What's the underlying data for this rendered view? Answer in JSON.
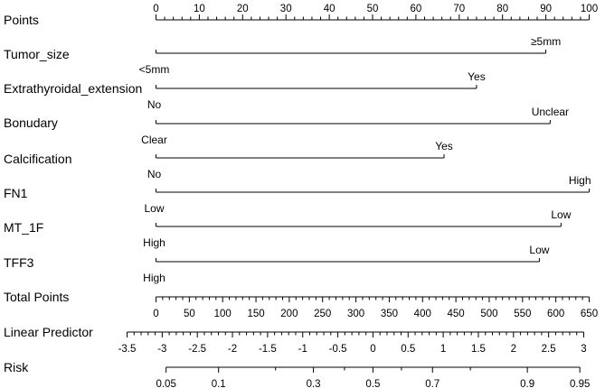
{
  "chart_data": {
    "type": "nomogram",
    "points_axis": {
      "label": "Points",
      "range": [
        0,
        100
      ],
      "labeled_ticks": [
        0,
        10,
        20,
        30,
        40,
        50,
        60,
        70,
        80,
        90,
        100
      ],
      "minor_step": 2
    },
    "variables": [
      {
        "name": "Tumor_size",
        "levels": [
          {
            "label": "<5mm",
            "points": 0,
            "label_side": "below"
          },
          {
            "label": "≥5mm",
            "points": 90,
            "label_side": "above"
          }
        ]
      },
      {
        "name": "Extrathyroidal_extension",
        "levels": [
          {
            "label": "No",
            "points": 0,
            "label_side": "below"
          },
          {
            "label": "Yes",
            "points": 74,
            "label_side": "above"
          }
        ]
      },
      {
        "name": "Bonudary",
        "levels": [
          {
            "label": "Clear",
            "points": 0,
            "label_side": "below"
          },
          {
            "label": "Unclear",
            "points": 91,
            "label_side": "above"
          }
        ]
      },
      {
        "name": "Calcification",
        "levels": [
          {
            "label": "No",
            "points": 0,
            "label_side": "below"
          },
          {
            "label": "Yes",
            "points": 66.5,
            "label_side": "above"
          }
        ]
      },
      {
        "name": "FN1",
        "levels": [
          {
            "label": "Low",
            "points": 0,
            "label_side": "below"
          },
          {
            "label": "High",
            "points": 100,
            "label_side": "above"
          }
        ]
      },
      {
        "name": "MT_1F",
        "levels": [
          {
            "label": "High",
            "points": 0,
            "label_side": "below"
          },
          {
            "label": "Low",
            "points": 93.5,
            "label_side": "above"
          }
        ]
      },
      {
        "name": "TFF3",
        "levels": [
          {
            "label": "High",
            "points": 0,
            "label_side": "below"
          },
          {
            "label": "Low",
            "points": 88.5,
            "label_side": "above"
          }
        ]
      }
    ],
    "total_points_axis": {
      "label": "Total Points",
      "range": [
        0,
        650
      ],
      "labeled_ticks": [
        0,
        50,
        100,
        150,
        200,
        250,
        300,
        350,
        400,
        450,
        500,
        550,
        600,
        650
      ],
      "minor_step": 10
    },
    "linear_predictor_axis": {
      "label": "Linear Predictor",
      "range": [
        -3.5,
        3
      ],
      "labeled_ticks": [
        -3.5,
        -3,
        -2.5,
        -2,
        -1.5,
        -1,
        -0.5,
        0,
        0.5,
        1,
        1.5,
        2,
        2.5,
        3
      ],
      "tick_labels": [
        "-3.5",
        "-3",
        "-2.5",
        "-2",
        "-1.5",
        "-1",
        "-0.5",
        "0",
        "0.5",
        "1",
        "1.5",
        "2",
        "2.5",
        "3"
      ],
      "minor_step": 0.1
    },
    "risk_axis": {
      "label": "Risk",
      "labeled_ticks": [
        0.05,
        0.1,
        0.3,
        0.5,
        0.7,
        0.9,
        0.95
      ],
      "tick_labels": [
        "0.05",
        "0.1",
        "0.3",
        "0.5",
        "0.7",
        "0.9",
        "0.95"
      ],
      "minor_ticks": [
        0.2,
        0.4,
        0.6,
        0.8
      ]
    }
  }
}
